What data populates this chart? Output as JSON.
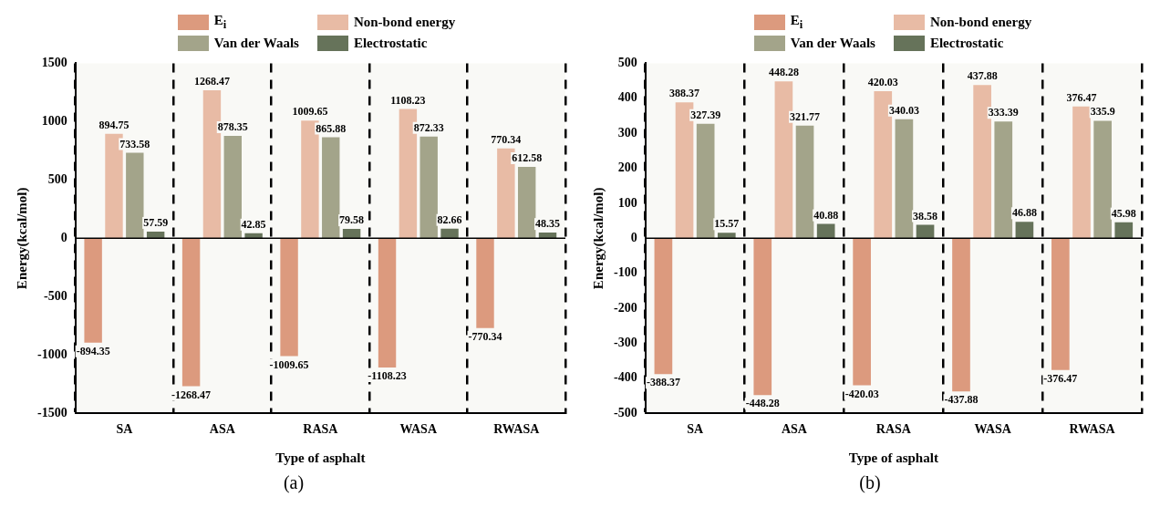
{
  "chart_data": [
    {
      "type": "bar",
      "xlabel": "Type of asphalt",
      "ylabel": "Energy(kcal/mol)",
      "categories": [
        "SA",
        "ASA",
        "RASA",
        "WASA",
        "RWASA"
      ],
      "series": [
        {
          "name": "E$_{i}$",
          "color": "#dc9a7e",
          "values": [
            -894.35,
            -1268.47,
            -1009.65,
            -1108.23,
            -770.34
          ]
        },
        {
          "name": "Non-bond energy",
          "color": "#e8bba5",
          "values": [
            894.75,
            1268.47,
            1009.65,
            1108.23,
            770.34
          ]
        },
        {
          "name": "Van der Waals",
          "color": "#a3a48a",
          "values": [
            733.58,
            878.35,
            865.88,
            872.33,
            612.58
          ]
        },
        {
          "name": "Electrostatic",
          "color": "#66735a",
          "values": [
            57.59,
            42.85,
            79.58,
            82.66,
            48.35
          ]
        }
      ],
      "ylim": [
        -1500,
        1500
      ],
      "yticks": [
        -1500,
        -1000,
        -500,
        0,
        500,
        1000,
        1500
      ],
      "grid": "x",
      "legend": "top",
      "data_labels": true,
      "ref_lines": [
        {
          "axis": "y",
          "value": 0
        }
      ],
      "annotations": [
        "(a)"
      ]
    },
    {
      "type": "bar",
      "xlabel": "Type of asphalt",
      "ylabel": "Energy(kcal/mol)",
      "categories": [
        "SA",
        "ASA",
        "RASA",
        "WASA",
        "RWASA"
      ],
      "series": [
        {
          "name": "E$_{i}$",
          "color": "#dc9a7e",
          "values": [
            -388.37,
            -448.28,
            -420.03,
            -437.88,
            -376.47
          ]
        },
        {
          "name": "Non-bond energy",
          "color": "#e8bba5",
          "values": [
            388.37,
            448.28,
            420.03,
            437.88,
            376.47
          ]
        },
        {
          "name": "Van der Waals",
          "color": "#a3a48a",
          "values": [
            327.39,
            321.77,
            340.03,
            333.39,
            335.9
          ]
        },
        {
          "name": "Electrostatic",
          "color": "#66735a",
          "values": [
            15.57,
            40.88,
            38.58,
            46.88,
            45.98
          ]
        }
      ],
      "ylim": [
        -500,
        500
      ],
      "yticks": [
        -500,
        -400,
        -300,
        -200,
        -100,
        0,
        100,
        200,
        300,
        400,
        500
      ],
      "grid": "x",
      "legend": "top",
      "data_labels": true,
      "ref_lines": [
        {
          "axis": "y",
          "value": 0
        }
      ],
      "annotations": [
        "(b)"
      ]
    }
  ]
}
